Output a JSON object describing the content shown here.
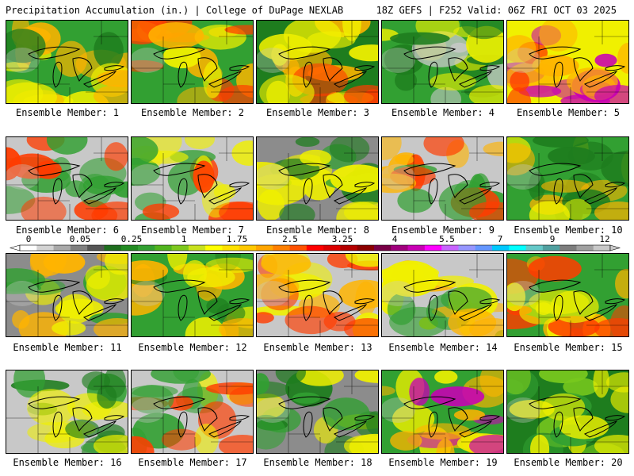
{
  "header": {
    "left_title": "Precipitation Accumulation (in.) | College of DuPage NEXLAB",
    "right_title": "18Z GEFS | F252 Valid: 06Z FRI OCT 03 2025"
  },
  "panels": [
    {
      "label": "Ensemble Member: 1",
      "member": 1
    },
    {
      "label": "Ensemble Member: 2",
      "member": 2
    },
    {
      "label": "Ensemble Member: 3",
      "member": 3
    },
    {
      "label": "Ensemble Member: 4",
      "member": 4
    },
    {
      "label": "Ensemble Member: 5",
      "member": 5
    },
    {
      "label": "Ensemble Member: 6",
      "member": 6
    },
    {
      "label": "Ensemble Member: 7",
      "member": 7
    },
    {
      "label": "Ensemble Member: 8",
      "member": 8
    },
    {
      "label": "Ensemble Member: 9",
      "member": 9
    },
    {
      "label": "Ensemble Member: 10",
      "member": 10
    },
    {
      "label": "Ensemble Member: 11",
      "member": 11
    },
    {
      "label": "Ensemble Member: 12",
      "member": 12
    },
    {
      "label": "Ensemble Member: 13",
      "member": 13
    },
    {
      "label": "Ensemble Member: 14",
      "member": 14
    },
    {
      "label": "Ensemble Member: 15",
      "member": 15
    },
    {
      "label": "Ensemble Member: 16",
      "member": 16
    },
    {
      "label": "Ensemble Member: 17",
      "member": 17
    },
    {
      "label": "Ensemble Member: 18",
      "member": 18
    },
    {
      "label": "Ensemble Member: 19",
      "member": 19
    },
    {
      "label": "Ensemble Member: 20",
      "member": 20
    }
  ],
  "colorbar": {
    "labels": [
      "0",
      "0.05",
      "0.25",
      "1",
      "1.75",
      "2.5",
      "3.25",
      "4",
      "5.5",
      "7",
      "9",
      "12"
    ],
    "colors": [
      "#ffffff",
      "#d3d3d3",
      "#a9a9a9",
      "#808080",
      "#555555",
      "#1e6e1e",
      "#228b22",
      "#32a032",
      "#50b41e",
      "#7dc81e",
      "#c8e11e",
      "#ffff00",
      "#ffe100",
      "#ffc800",
      "#ffa500",
      "#ff7f00",
      "#ff5000",
      "#ff0000",
      "#dc0000",
      "#b40000",
      "#8b0000",
      "#780046",
      "#a0007d",
      "#c800b4",
      "#ff00ff",
      "#c864ff",
      "#9696ff",
      "#6496ff",
      "#00c8ff",
      "#00ffff",
      "#64c8c8",
      "#50a0a0",
      "#7d7d7d",
      "#a0a0a0",
      "#c8c8c8"
    ]
  },
  "palette": {
    "gray_light": "#c8c8c8",
    "gray_dark": "#8c8c8c",
    "green_dark": "#1e7d1e",
    "green": "#32a032",
    "green_light": "#78c81e",
    "yellow": "#f0f000",
    "orange": "#ffb400",
    "red": "#ff3c00",
    "dark_red": "#b40000",
    "purple": "#c800b4"
  }
}
